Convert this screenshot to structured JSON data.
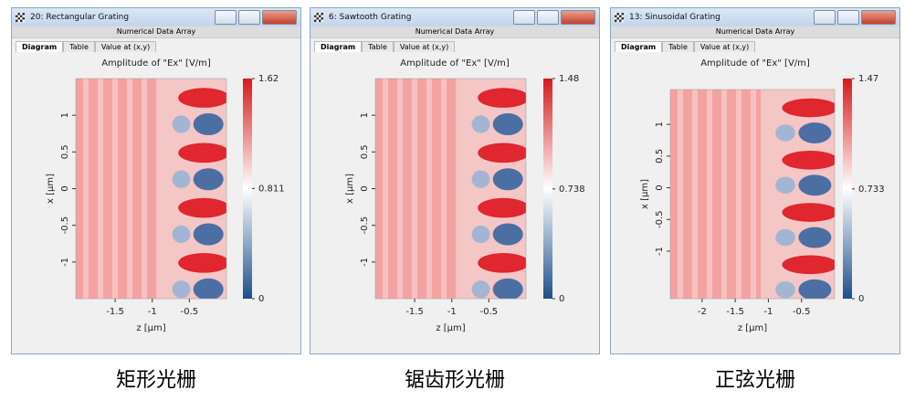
{
  "windows": [
    {
      "title": "20: Rectangular Grating",
      "header": "Numerical Data Array",
      "tabs": [
        "Diagram",
        "Table",
        "Value at (x,y)"
      ]
    },
    {
      "title": "6: Sawtooth Grating",
      "header": "Numerical Data Array",
      "tabs": [
        "Diagram",
        "Table",
        "Value at (x,y)"
      ]
    },
    {
      "title": "13: Sinusoidal Grating",
      "header": "Numerical Data Array",
      "tabs": [
        "Diagram",
        "Table",
        "Value at (x,y)"
      ]
    }
  ],
  "chart_data": [
    {
      "type": "heatmap",
      "title": "Amplitude of \"Ex\"  [V/m]",
      "x_label": "z [µm]",
      "y_label": "x [µm]",
      "xlim": [
        -2.03,
        0
      ],
      "xticks": [
        -1.5,
        -1,
        -0.5
      ],
      "ylim": [
        -1.5,
        1.5
      ],
      "yticks": [
        -1,
        -0.5,
        0,
        0.5,
        1
      ],
      "colorbar": {
        "clim": [
          0,
          1.62
        ],
        "ticks": [
          0,
          0.811,
          1.62
        ]
      }
    },
    {
      "type": "heatmap",
      "title": "Amplitude of \"Ex\"  [V/m]",
      "x_label": "z [µm]",
      "y_label": "x [µm]",
      "xlim": [
        -2.03,
        0
      ],
      "xticks": [
        -1.5,
        -1,
        -0.5
      ],
      "ylim": [
        -1.5,
        1.5
      ],
      "yticks": [
        -1,
        -0.5,
        0,
        0.5,
        1
      ],
      "colorbar": {
        "clim": [
          0,
          1.48
        ],
        "ticks": [
          0,
          0.738,
          1.48
        ]
      }
    },
    {
      "type": "heatmap",
      "title": "Amplitude of \"Ex\"  [V/m]",
      "x_label": "z [µm]",
      "y_label": "x [µm]",
      "xlim": [
        -2.48,
        0
      ],
      "xticks": [
        -2,
        -1.5,
        -1,
        -0.5
      ],
      "ylim": [
        -1.75,
        1.55
      ],
      "yticks": [
        -1,
        -0.5,
        0,
        0.5,
        1
      ],
      "colorbar": {
        "clim": [
          0,
          1.47
        ],
        "ticks": [
          0,
          0.733,
          1.47
        ]
      }
    }
  ],
  "captions": [
    "矩形光栅",
    "锯齿形光栅",
    "正弦光栅"
  ]
}
